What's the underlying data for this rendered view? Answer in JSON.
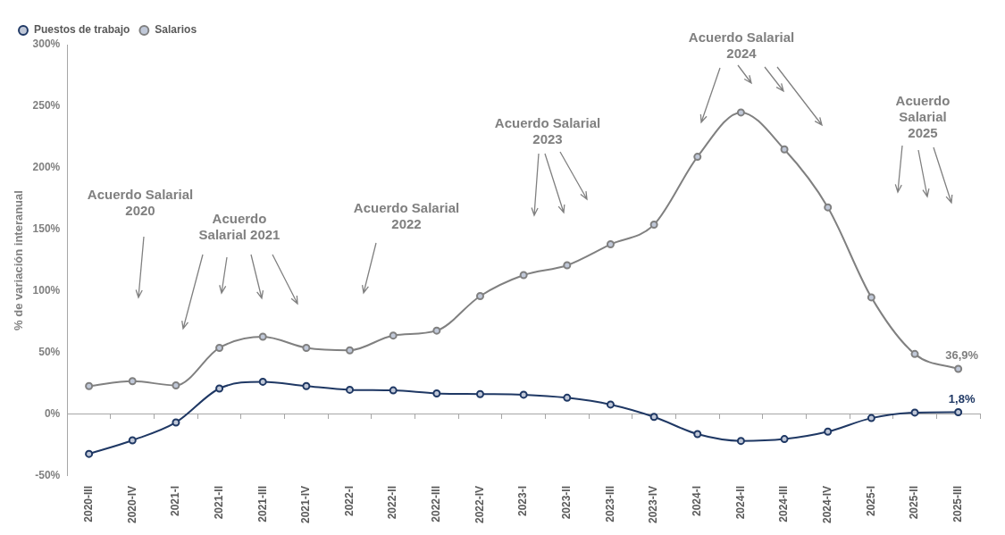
{
  "chart_data": {
    "type": "line",
    "ylabel": "% de variación interanual",
    "categories": [
      "2020-III",
      "2020-IV",
      "2021-I",
      "2021-II",
      "2021-III",
      "2021-IV",
      "2022-I",
      "2022-II",
      "2022-III",
      "2022-IV",
      "2023-I",
      "2023-II",
      "2023-III",
      "2023-IV",
      "2024-I",
      "2024-II",
      "2024-III",
      "2024-IV",
      "2025-I",
      "2025-II",
      "2025-III"
    ],
    "series": [
      {
        "name": "Puestos de trabajo",
        "color": "#1f3864",
        "values": [
          -32,
          -21,
          -6.5,
          21,
          26.5,
          23,
          20,
          19.5,
          17,
          16.5,
          16,
          13.5,
          8,
          -2,
          -16,
          -21.5,
          -20,
          -14,
          -3,
          1.5,
          1.8
        ],
        "value_labels": [
          null,
          null,
          null,
          null,
          null,
          null,
          null,
          null,
          null,
          null,
          null,
          null,
          null,
          null,
          null,
          null,
          null,
          null,
          null,
          null,
          "1,8%"
        ]
      },
      {
        "name": "Salarios",
        "color": "#808080",
        "values": [
          23,
          27,
          23.5,
          54,
          63,
          54,
          52,
          64,
          68,
          96,
          113,
          121,
          138,
          154,
          209,
          245,
          215,
          168,
          95,
          49,
          36.9
        ],
        "value_labels": [
          null,
          null,
          null,
          null,
          null,
          null,
          null,
          null,
          null,
          null,
          null,
          null,
          null,
          null,
          null,
          null,
          null,
          null,
          null,
          null,
          "36,9%"
        ]
      }
    ],
    "ylim": [
      -50,
      300
    ],
    "yticks": [
      {
        "value": -50,
        "label": "-50%"
      },
      {
        "value": 0,
        "label": "0%"
      },
      {
        "value": 50,
        "label": "50%"
      },
      {
        "value": 100,
        "label": "100%"
      },
      {
        "value": 150,
        "label": "150%"
      },
      {
        "value": 200,
        "label": "200%"
      },
      {
        "value": 250,
        "label": "250%"
      },
      {
        "value": 300,
        "label": "300%"
      }
    ],
    "legend": "top left",
    "marker": "circle",
    "line_style": "solid",
    "annotations": [
      "Acuerdo Salarial\n2020",
      "Acuerdo\nSalarial 2021",
      "Acuerdo Salarial\n2022",
      "Acuerdo Salarial\n2023",
      "Acuerdo Salarial\n2024",
      "Acuerdo\nSalarial\n2025"
    ]
  }
}
